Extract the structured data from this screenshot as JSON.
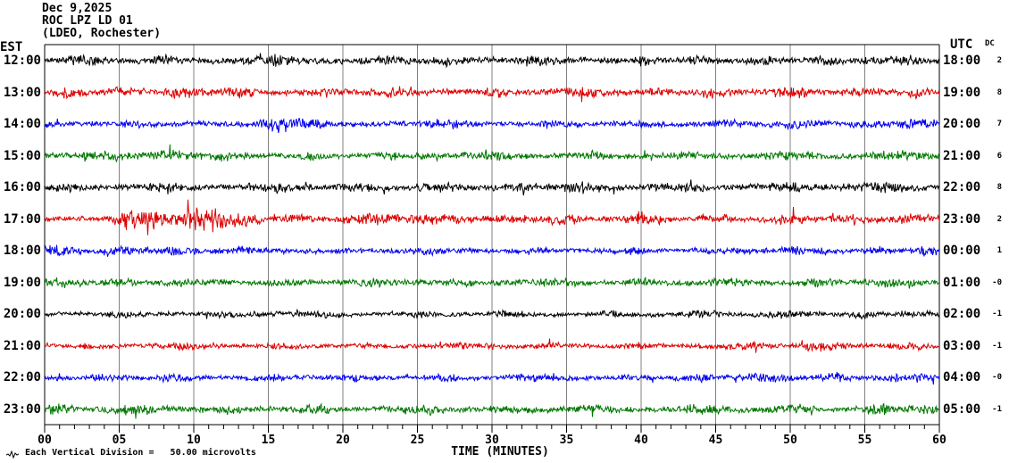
{
  "header": {
    "date": "Dec 9,2025",
    "station": "ROC LPZ LD 01",
    "location": "(LDEO, Rochester)"
  },
  "left_axis_label": "EST",
  "right_axis_label": "UTC",
  "dc_column_label": "DC",
  "x_axis": {
    "label": "TIME (MINUTES)",
    "tick_labels": [
      "00",
      "05",
      "10",
      "15",
      "20",
      "25",
      "30",
      "35",
      "40",
      "45",
      "50",
      "55",
      "60"
    ],
    "minutes_range": [
      0,
      60
    ],
    "minor_tick_every_minutes": 1,
    "major_tick_every_minutes": 5
  },
  "footer": {
    "scale_note": "Each Vertical Division =   50.00 microvolts"
  },
  "colors": {
    "black": "#000000",
    "red": "#dd0000",
    "blue": "#0000ee",
    "green": "#007700",
    "grid": "#808080",
    "frame": "#000000"
  },
  "chart_data": {
    "type": "line",
    "kind": "helicorder-seismogram",
    "title": "ROC LPZ LD 01 — Dec 9,2025 (LDEO, Rochester)",
    "xlabel": "TIME (MINUTES)",
    "x_range_minutes": [
      0,
      60
    ],
    "grid": "vertical every 5 minutes",
    "vertical_division_microvolts": 50.0,
    "rows": [
      {
        "est": "12:00",
        "utc": "18:00",
        "dc": "2",
        "color": "#000000",
        "amp": 3.2,
        "events": [
          [
            3,
            1.5,
            3.5
          ],
          [
            8,
            1,
            2.5
          ],
          [
            15.5,
            1.5,
            3.5
          ],
          [
            23,
            1,
            3
          ],
          [
            27,
            1,
            2.5
          ],
          [
            33,
            1.2,
            3
          ],
          [
            40,
            1,
            2.5
          ],
          [
            44,
            0.8,
            2.5
          ],
          [
            48,
            1,
            2.5
          ],
          [
            52.5,
            1,
            3
          ],
          [
            57,
            1.5,
            3.5
          ]
        ]
      },
      {
        "est": "13:00",
        "utc": "19:00",
        "dc": "8",
        "color": "#dd0000",
        "amp": 3.2,
        "events": [
          [
            1.5,
            1,
            3
          ],
          [
            5,
            1,
            2.5
          ],
          [
            9,
            1.5,
            3
          ],
          [
            13,
            1,
            3.5
          ],
          [
            19,
            1,
            2.5
          ],
          [
            23,
            1.5,
            2.5
          ],
          [
            30,
            1,
            2.5
          ],
          [
            36,
            1.5,
            3
          ],
          [
            41,
            1,
            2.5
          ],
          [
            45,
            1,
            3
          ],
          [
            50,
            1.5,
            3
          ],
          [
            55,
            1,
            3
          ],
          [
            58.5,
            1,
            3.5
          ]
        ]
      },
      {
        "est": "14:00",
        "utc": "20:00",
        "dc": "7",
        "color": "#0000ee",
        "amp": 2.8,
        "events": [
          [
            6,
            1,
            2
          ],
          [
            15.8,
            1.2,
            6.5
          ],
          [
            18,
            1,
            2.5
          ],
          [
            27,
            1.5,
            2.5
          ],
          [
            34,
            1,
            2
          ],
          [
            40,
            1,
            2.5
          ],
          [
            46,
            1,
            2.5
          ],
          [
            50.5,
            1.2,
            3
          ],
          [
            55,
            1,
            2.5
          ],
          [
            58.5,
            1.2,
            4
          ]
        ]
      },
      {
        "est": "15:00",
        "utc": "21:00",
        "dc": "6",
        "color": "#007700",
        "amp": 3.0,
        "events": [
          [
            4,
            1.5,
            3
          ],
          [
            8,
            2,
            3
          ],
          [
            12,
            1.5,
            2.5
          ],
          [
            18,
            1,
            2
          ],
          [
            24,
            1.5,
            2
          ],
          [
            30,
            1.5,
            3
          ],
          [
            37,
            1,
            2.5
          ],
          [
            43,
            1,
            2
          ],
          [
            50,
            1.5,
            2.5
          ],
          [
            57,
            1.5,
            3
          ]
        ]
      },
      {
        "est": "16:00",
        "utc": "22:00",
        "dc": "8",
        "color": "#000000",
        "amp": 3.2,
        "events": [
          [
            2,
            1,
            2.5
          ],
          [
            8,
            1.5,
            3
          ],
          [
            15,
            1.5,
            3
          ],
          [
            21,
            1,
            2.5
          ],
          [
            26,
            1.5,
            3
          ],
          [
            32,
            1,
            2.5
          ],
          [
            36,
            1.5,
            3.5
          ],
          [
            43,
            1.5,
            3
          ],
          [
            50,
            1.5,
            3
          ],
          [
            56,
            1.5,
            3.5
          ]
        ]
      },
      {
        "est": "17:00",
        "utc": "23:00",
        "dc": "2",
        "color": "#dd0000",
        "amp": 2.8,
        "events": [
          [
            5.5,
            1,
            6
          ],
          [
            7,
            1.5,
            9.5
          ],
          [
            10,
            1,
            6
          ],
          [
            11.5,
            1.5,
            9
          ],
          [
            13.5,
            1,
            5
          ],
          [
            17,
            1,
            2
          ],
          [
            22,
            2,
            4
          ],
          [
            26,
            2,
            4
          ],
          [
            31,
            1.5,
            2.5
          ],
          [
            35,
            1,
            3
          ],
          [
            40,
            1.5,
            3.5
          ],
          [
            45,
            1,
            2.5
          ],
          [
            50,
            1.5,
            3.5
          ],
          [
            54,
            1,
            3
          ],
          [
            58,
            1.5,
            3
          ]
        ]
      },
      {
        "est": "18:00",
        "utc": "00:00",
        "dc": "1",
        "color": "#0000ee",
        "amp": 2.6,
        "events": [
          [
            1,
            1.5,
            3.5
          ],
          [
            5,
            1,
            2.5
          ],
          [
            9,
            1.5,
            3
          ],
          [
            13,
            1,
            2.5
          ],
          [
            20,
            1,
            1.5
          ],
          [
            26,
            1.5,
            1.5
          ],
          [
            33,
            1,
            1.5
          ],
          [
            40,
            1,
            2
          ],
          [
            46,
            1,
            2
          ],
          [
            51,
            1.5,
            2.5
          ],
          [
            56,
            1,
            2
          ],
          [
            59,
            0.8,
            3
          ]
        ]
      },
      {
        "est": "19:00",
        "utc": "01:00",
        "dc": "-0",
        "color": "#007700",
        "amp": 2.8,
        "events": [
          [
            1,
            1,
            3
          ],
          [
            5,
            1,
            2.5
          ],
          [
            10,
            1.5,
            2
          ],
          [
            16,
            1,
            2
          ],
          [
            22,
            1.5,
            2.5
          ],
          [
            28,
            1,
            2
          ],
          [
            34,
            1.5,
            2.5
          ],
          [
            40,
            1,
            2
          ],
          [
            46,
            1.5,
            2.5
          ],
          [
            52,
            1,
            2.5
          ],
          [
            57,
            1.5,
            2.5
          ]
        ]
      },
      {
        "est": "20:00",
        "utc": "02:00",
        "dc": "-1",
        "color": "#000000",
        "amp": 2.3,
        "events": [
          [
            5,
            1.5,
            1.5
          ],
          [
            12,
            1,
            1.5
          ],
          [
            18,
            1.5,
            2
          ],
          [
            25,
            1,
            2
          ],
          [
            31,
            1.5,
            2
          ],
          [
            38,
            1,
            2
          ],
          [
            44,
            1.5,
            2.5
          ],
          [
            50,
            1.5,
            2.5
          ],
          [
            55,
            1,
            2
          ],
          [
            58.5,
            1,
            2.5
          ]
        ]
      },
      {
        "est": "21:00",
        "utc": "03:00",
        "dc": "-1",
        "color": "#dd0000",
        "amp": 2.3,
        "events": [
          [
            3,
            1,
            1.5
          ],
          [
            9,
            1.5,
            2
          ],
          [
            16,
            1,
            2
          ],
          [
            22,
            1,
            1.5
          ],
          [
            28,
            1.5,
            2
          ],
          [
            34,
            1,
            2
          ],
          [
            40,
            1.5,
            2
          ],
          [
            47,
            1.5,
            2.5
          ],
          [
            52,
            1.5,
            3
          ],
          [
            58,
            1,
            2.5
          ]
        ]
      },
      {
        "est": "22:00",
        "utc": "04:00",
        "dc": "-0",
        "color": "#0000ee",
        "amp": 2.6,
        "events": [
          [
            4,
            1,
            2
          ],
          [
            9,
            1.5,
            2.5
          ],
          [
            15,
            1,
            2
          ],
          [
            21,
            1.5,
            2
          ],
          [
            27,
            1,
            2
          ],
          [
            33,
            1.5,
            2.5
          ],
          [
            39,
            1,
            2
          ],
          [
            44,
            1,
            2.5
          ],
          [
            48.5,
            1.5,
            3.5
          ],
          [
            53,
            1,
            2.5
          ],
          [
            58,
            1.5,
            3
          ]
        ]
      },
      {
        "est": "23:00",
        "utc": "05:00",
        "dc": "-1",
        "color": "#007700",
        "amp": 3.0,
        "events": [
          [
            1,
            1,
            3.5
          ],
          [
            6,
            1.5,
            3.5
          ],
          [
            12,
            1,
            2
          ],
          [
            18,
            1.5,
            2.5
          ],
          [
            25,
            1.5,
            3
          ],
          [
            31,
            1,
            2
          ],
          [
            37,
            1.5,
            2.5
          ],
          [
            44,
            1.5,
            2.5
          ],
          [
            50,
            1.5,
            3
          ],
          [
            56,
            1.5,
            3.5
          ],
          [
            59,
            0.8,
            3
          ]
        ]
      }
    ]
  }
}
